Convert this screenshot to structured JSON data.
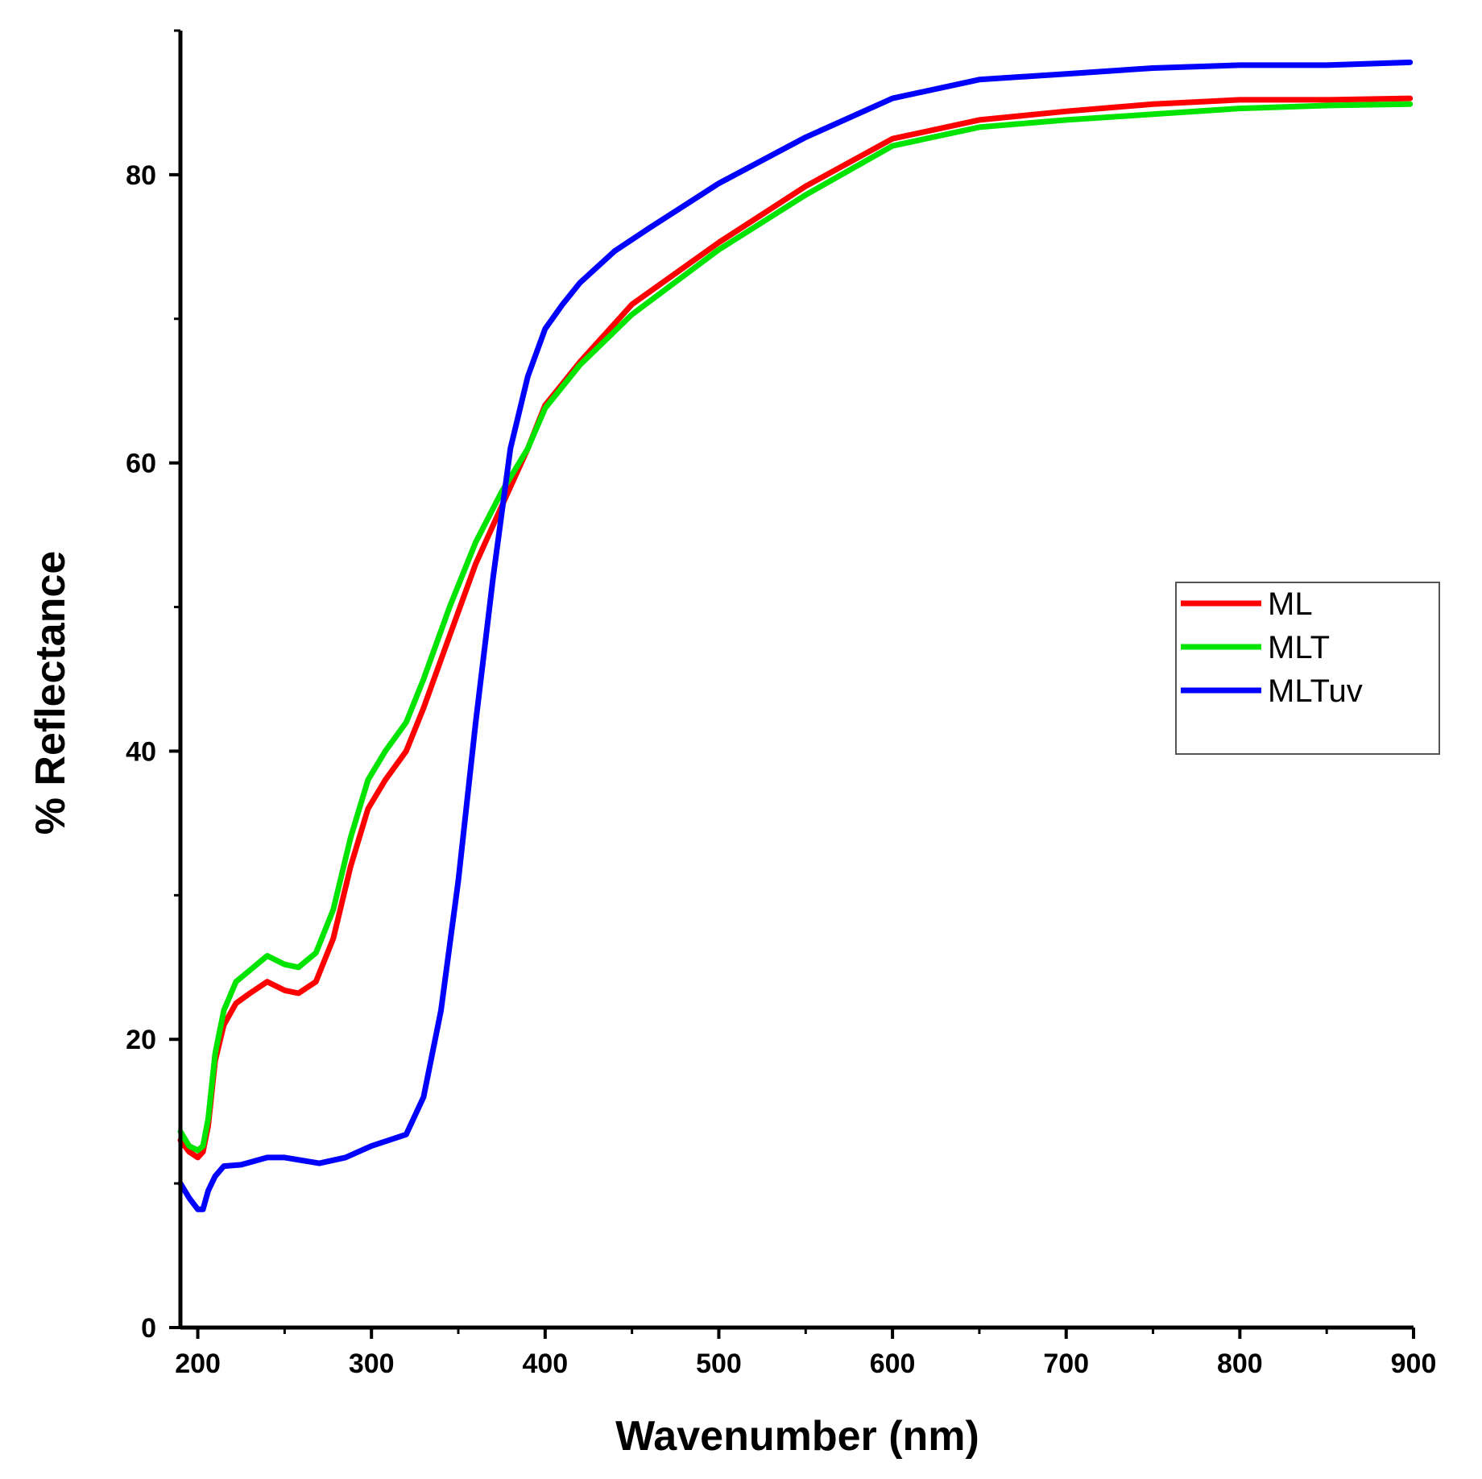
{
  "chart_data": {
    "type": "line",
    "title": "",
    "xlabel": "Wavenumber (nm)",
    "ylabel": "% Reflectance",
    "xlim": [
      190,
      900
    ],
    "ylim": [
      0,
      90
    ],
    "xticks": [
      200,
      300,
      400,
      500,
      600,
      700,
      800,
      900
    ],
    "yticks": [
      0,
      20,
      40,
      60,
      80
    ],
    "grid": false,
    "legend_position": "right",
    "colors": {
      "ML": "#ff0000",
      "MLT": "#00e400",
      "MLTuv": "#0000ff"
    },
    "series": [
      {
        "name": "ML",
        "x": [
          190,
          195,
          200,
          203,
          206,
          210,
          215,
          222,
          230,
          240,
          250,
          258,
          268,
          278,
          288,
          298,
          308,
          320,
          330,
          345,
          360,
          375,
          390,
          400,
          420,
          450,
          500,
          550,
          600,
          650,
          700,
          750,
          800,
          850,
          898
        ],
        "y": [
          13,
          12.2,
          11.8,
          12.2,
          14,
          18.5,
          21,
          22.5,
          23.2,
          24,
          23.4,
          23.2,
          24,
          27,
          32,
          36,
          38,
          40,
          43,
          48,
          53,
          57,
          61,
          64,
          67,
          71,
          75.3,
          79.2,
          82.5,
          83.8,
          84.4,
          84.9,
          85.2,
          85.2,
          85.3
        ]
      },
      {
        "name": "MLT",
        "x": [
          190,
          195,
          200,
          203,
          206,
          210,
          215,
          222,
          230,
          240,
          250,
          258,
          268,
          278,
          288,
          298,
          308,
          320,
          330,
          345,
          360,
          375,
          390,
          400,
          420,
          450,
          500,
          550,
          600,
          650,
          700,
          750,
          800,
          850,
          898
        ],
        "y": [
          13.6,
          12.6,
          12.3,
          12.6,
          14.5,
          19,
          22,
          24,
          24.8,
          25.8,
          25.2,
          25,
          26,
          29,
          34,
          38,
          40,
          42,
          45,
          50,
          54.5,
          58,
          61,
          63.8,
          66.8,
          70.3,
          74.8,
          78.6,
          82,
          83.3,
          83.8,
          84.2,
          84.6,
          84.8,
          84.9
        ]
      },
      {
        "name": "MLTuv",
        "x": [
          190,
          195,
          200,
          203,
          206,
          210,
          215,
          225,
          240,
          250,
          270,
          285,
          300,
          310,
          320,
          330,
          340,
          350,
          360,
          370,
          380,
          390,
          400,
          410,
          420,
          440,
          460,
          500,
          550,
          600,
          650,
          700,
          750,
          800,
          850,
          898
        ],
        "y": [
          10,
          9,
          8.2,
          8.2,
          9.5,
          10.5,
          11.2,
          11.3,
          11.8,
          11.8,
          11.4,
          11.8,
          12.6,
          13,
          13.4,
          16,
          22,
          31,
          42,
          52,
          61,
          66,
          69.3,
          71,
          72.5,
          74.7,
          76.3,
          79.4,
          82.6,
          85.3,
          86.6,
          87,
          87.4,
          87.6,
          87.6,
          87.8
        ]
      }
    ]
  }
}
